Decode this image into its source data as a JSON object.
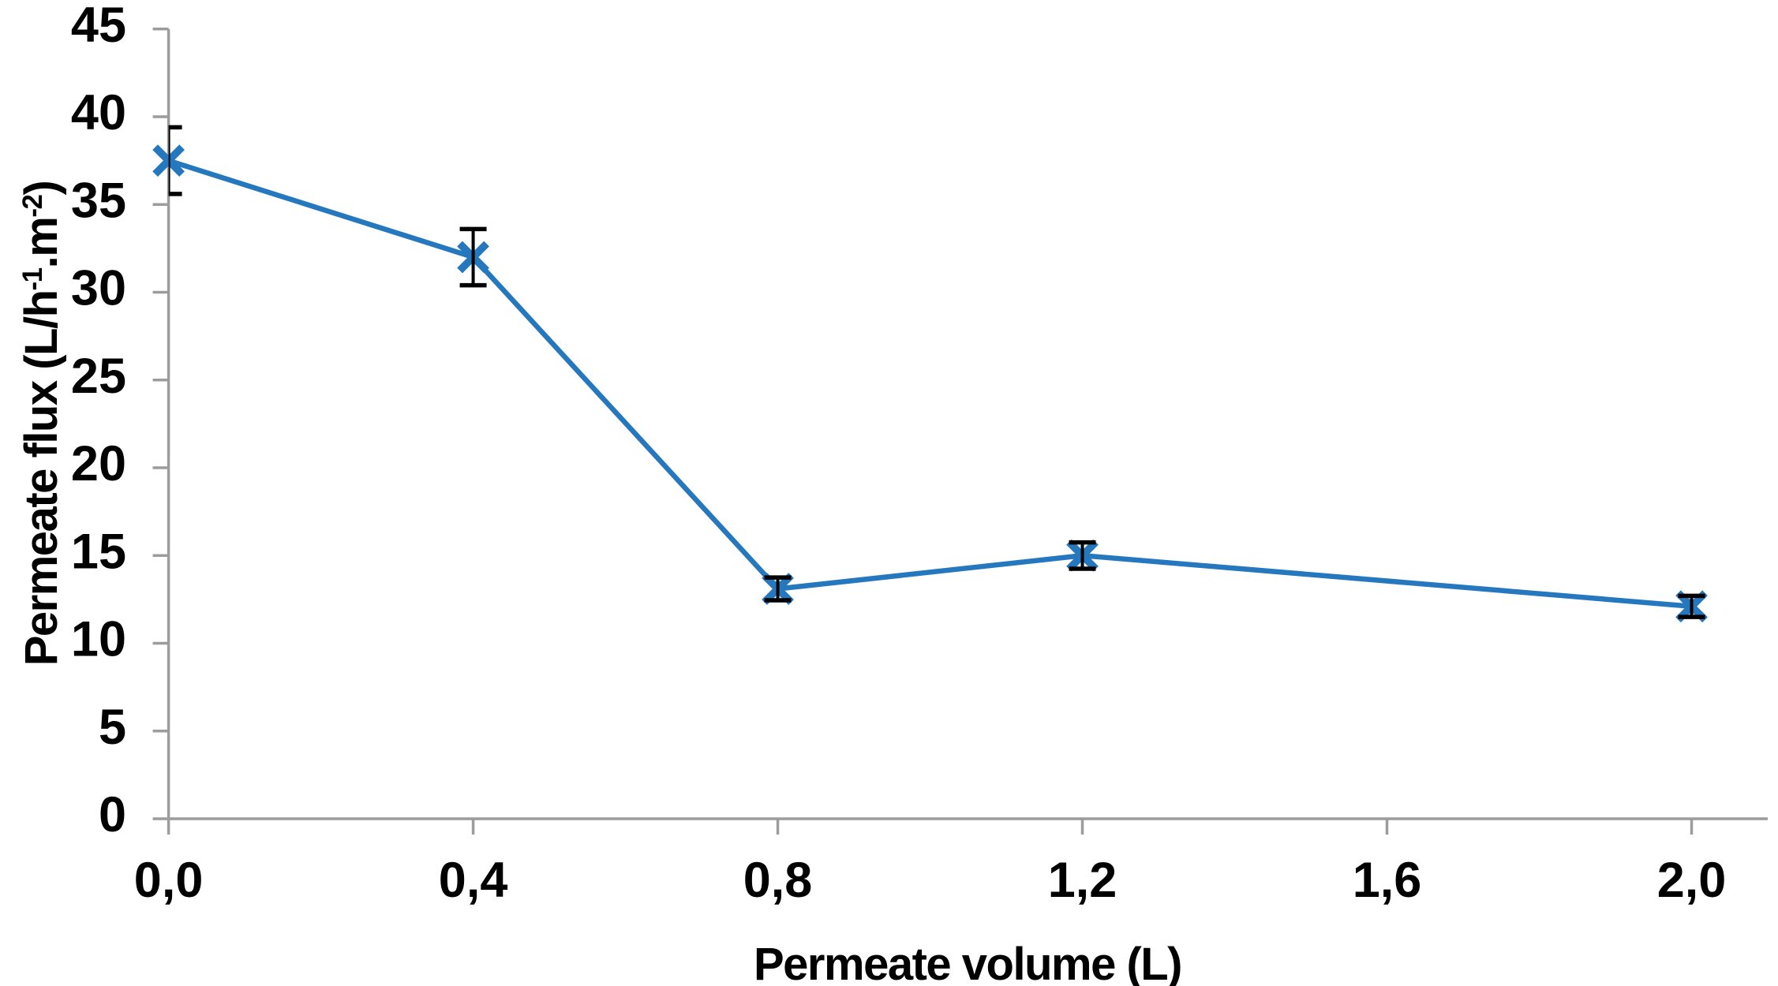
{
  "chart_data": {
    "type": "line",
    "title": "",
    "xlabel": "Permeate volume (L)",
    "ylabel": "Permeate flux (L/h-1.m-2)",
    "ylabel_parts": {
      "base1": "Permeate flux (L/h",
      "sup1": "-1",
      "base2": ".m",
      "sup2": "-2",
      "base3": ")"
    },
    "x": [
      0.0,
      0.4,
      0.8,
      1.2,
      2.0
    ],
    "series": [
      {
        "name": "Permeate flux",
        "values": [
          37.5,
          32.0,
          13.1,
          15.0,
          12.1
        ],
        "error_bars": [
          1.9,
          1.6,
          0.65,
          0.75,
          0.6
        ],
        "marker": "x",
        "color": "#2577BE"
      }
    ],
    "x_ticks": {
      "values": [
        0.0,
        0.4,
        0.8,
        1.2,
        1.6,
        2.0
      ],
      "labels": [
        "0,0",
        "0,4",
        "0,8",
        "1,2",
        "1,6",
        "2,0"
      ]
    },
    "y_ticks": {
      "values": [
        0,
        5,
        10,
        15,
        20,
        25,
        30,
        35,
        40,
        45
      ],
      "labels": [
        "0",
        "5",
        "10",
        "15",
        "20",
        "25",
        "30",
        "35",
        "40",
        "45"
      ]
    },
    "xlim": [
      0,
      2.1
    ],
    "ylim": [
      0,
      45
    ],
    "grid": false,
    "legend": "none",
    "decimal_separator": ",",
    "colors": {
      "line": "#2577BE",
      "error_bar": "#000000",
      "axis": "#9C9C9C",
      "text": "#000000",
      "background": "#FFFFFF"
    }
  }
}
